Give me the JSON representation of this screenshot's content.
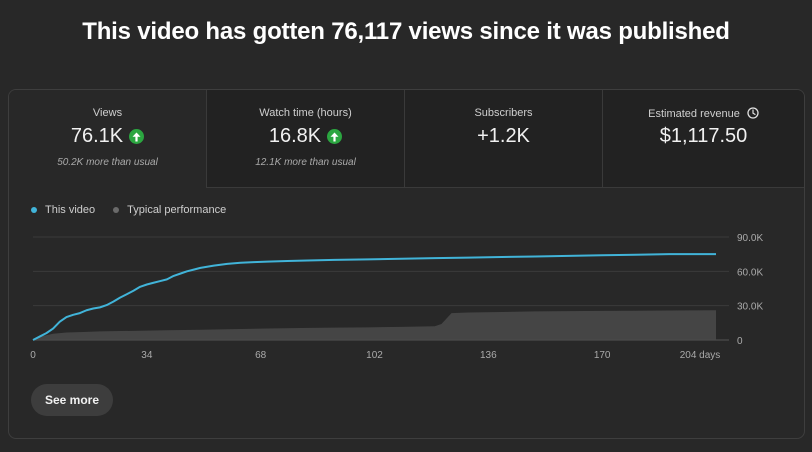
{
  "headline": "This video has gotten 76,117 views since it was published",
  "metrics": [
    {
      "title": "Views",
      "value": "76.1K",
      "sub": "50.2K more than usual",
      "trend": "up"
    },
    {
      "title": "Watch time (hours)",
      "value": "16.8K",
      "sub": "12.1K more than usual",
      "trend": "up"
    },
    {
      "title": "Subscribers",
      "value": "+1.2K",
      "sub": "",
      "trend": ""
    },
    {
      "title": "Estimated revenue",
      "value": "$1,117.50",
      "sub": "",
      "trend": ""
    }
  ],
  "see_more_label": "See more",
  "colors": {
    "accent": "#41b4d9",
    "typical": "#5a5a5a",
    "up": "#2ba640"
  },
  "icons": {
    "trend_up": "arrow-up-icon",
    "revenue_info": "clock-icon"
  },
  "chart_data": {
    "type": "line",
    "legend": [
      "This video",
      "Typical performance"
    ],
    "x_ticks": [
      "0",
      "34",
      "68",
      "102",
      "136",
      "170",
      "204 days"
    ],
    "y_ticks": [
      "0",
      "30.0K",
      "60.0K",
      "90.0K"
    ],
    "xlim": [
      0,
      204
    ],
    "ylim": [
      0,
      90000
    ],
    "series": [
      {
        "name": "This video",
        "x": [
          0,
          2,
          4,
          6,
          8,
          10,
          12,
          14,
          16,
          18,
          20,
          22,
          24,
          26,
          28,
          30,
          32,
          34,
          36,
          38,
          40,
          42,
          44,
          46,
          48,
          50,
          54,
          58,
          62,
          66,
          70,
          76,
          82,
          90,
          100,
          110,
          120,
          130,
          140,
          150,
          160,
          170,
          180,
          190,
          204
        ],
        "y": [
          0,
          3000,
          6000,
          10000,
          16000,
          20000,
          22000,
          23500,
          26000,
          27500,
          28500,
          30500,
          33500,
          37000,
          40000,
          43000,
          46500,
          48500,
          50000,
          51500,
          53000,
          56000,
          58000,
          60000,
          61500,
          63000,
          65000,
          66500,
          67500,
          68000,
          68500,
          69000,
          69500,
          70000,
          70500,
          71000,
          71500,
          72000,
          72500,
          73000,
          73500,
          74000,
          74500,
          75000,
          75000
        ]
      },
      {
        "name": "Typical performance",
        "x": [
          0,
          3,
          6,
          10,
          15,
          20,
          30,
          40,
          50,
          60,
          70,
          80,
          90,
          100,
          110,
          120,
          122,
          125,
          130,
          140,
          150,
          160,
          170,
          180,
          190,
          204
        ],
        "y": [
          0,
          3500,
          5500,
          6500,
          7000,
          7500,
          8000,
          8500,
          9000,
          9500,
          10000,
          10500,
          10800,
          11000,
          11500,
          12000,
          14000,
          23500,
          24000,
          24500,
          25000,
          25200,
          25400,
          25600,
          25800,
          26000
        ]
      }
    ]
  }
}
